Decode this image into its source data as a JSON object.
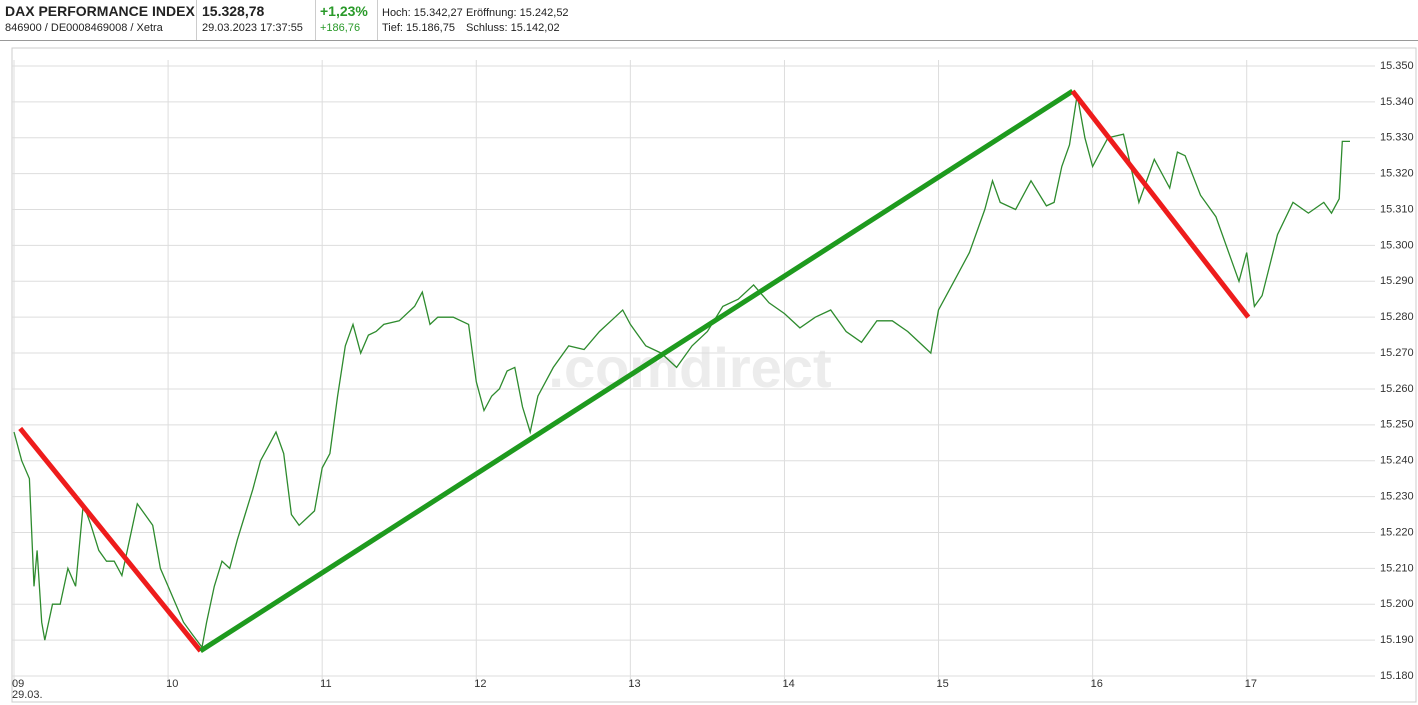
{
  "header": {
    "name": "DAX PERFORMANCE INDEX",
    "ids": "846900 / DE0008469008 / Xetra",
    "price": "15.328,78",
    "timestamp": "29.03.2023 17:37:55",
    "change_pct": "+1,23%",
    "change_abs": "+186,76",
    "high": "Hoch: 15.342,27",
    "open": "Eröffnung: 15.242,52",
    "low": "Tief: 15.186,75",
    "close": "Schluss: 15.142,02"
  },
  "chart_data": {
    "type": "line",
    "watermark": ".comdirect",
    "date_label": "29.03.",
    "xlim": [
      9,
      17.8
    ],
    "ylim": [
      15180,
      15350
    ],
    "grid": true,
    "xticks": [
      {
        "value": 9,
        "label": "09"
      },
      10,
      11,
      12,
      13,
      14,
      15,
      16,
      17
    ],
    "yticks": [
      {
        "value": 15180,
        "label": "15.180"
      },
      {
        "value": 15190,
        "label": "15.190"
      },
      {
        "value": 15200,
        "label": "15.200"
      },
      {
        "value": 15210,
        "label": "15.210"
      },
      {
        "value": 15220,
        "label": "15.220"
      },
      {
        "value": 15230,
        "label": "15.230"
      },
      {
        "value": 15240,
        "label": "15.240"
      },
      {
        "value": 15250,
        "label": "15.250"
      },
      {
        "value": 15260,
        "label": "15.260"
      },
      {
        "value": 15270,
        "label": "15.270"
      },
      {
        "value": 15280,
        "label": "15.280"
      },
      {
        "value": 15290,
        "label": "15.290"
      },
      {
        "value": 15300,
        "label": "15.300"
      },
      {
        "value": 15310,
        "label": "15.310"
      },
      {
        "value": 15320,
        "label": "15.320"
      },
      {
        "value": 15330,
        "label": "15.330"
      },
      {
        "value": 15340,
        "label": "15.340"
      },
      {
        "value": 15350,
        "label": "15.350"
      }
    ],
    "series": [
      {
        "color": "#2e8b2e",
        "x": [
          9.0,
          9.05,
          9.1,
          9.13,
          9.15,
          9.18,
          9.2,
          9.25,
          9.3,
          9.35,
          9.4,
          9.45,
          9.5,
          9.55,
          9.6,
          9.65,
          9.7,
          9.75,
          9.8,
          9.85,
          9.9,
          9.95,
          10.0,
          10.05,
          10.1,
          10.15,
          10.22,
          10.25,
          10.3,
          10.35,
          10.4,
          10.45,
          10.5,
          10.55,
          10.6,
          10.65,
          10.7,
          10.75,
          10.8,
          10.85,
          10.9,
          10.95,
          11.0,
          11.05,
          11.1,
          11.15,
          11.2,
          11.25,
          11.3,
          11.35,
          11.4,
          11.5,
          11.6,
          11.65,
          11.7,
          11.75,
          11.85,
          11.95,
          12.0,
          12.05,
          12.1,
          12.15,
          12.2,
          12.25,
          12.3,
          12.35,
          12.4,
          12.5,
          12.6,
          12.7,
          12.8,
          12.9,
          12.95,
          13.0,
          13.1,
          13.2,
          13.3,
          13.4,
          13.5,
          13.6,
          13.7,
          13.8,
          13.9,
          14.0,
          14.1,
          14.2,
          14.3,
          14.4,
          14.5,
          14.6,
          14.7,
          14.8,
          14.9,
          14.95,
          15.0,
          15.1,
          15.2,
          15.3,
          15.35,
          15.4,
          15.5,
          15.6,
          15.7,
          15.75,
          15.8,
          15.85,
          15.9,
          15.95,
          16.0,
          16.05,
          16.1,
          16.2,
          16.3,
          16.4,
          16.5,
          16.55,
          16.6,
          16.7,
          16.8,
          16.9,
          16.95,
          17.0,
          17.05,
          17.1,
          17.2,
          17.3,
          17.4,
          17.5,
          17.55,
          17.6,
          17.62,
          17.67
        ],
        "values": [
          15248,
          15240,
          15235,
          15205,
          15215,
          15195,
          15190,
          15200,
          15200,
          15210,
          15205,
          15228,
          15222,
          15215,
          15212,
          15212,
          15208,
          15218,
          15228,
          15225,
          15222,
          15210,
          15205,
          15200,
          15195,
          15192,
          15188,
          15195,
          15205,
          15212,
          15210,
          15218,
          15225,
          15232,
          15240,
          15244,
          15248,
          15242,
          15225,
          15222,
          15224,
          15226,
          15238,
          15242,
          15258,
          15272,
          15278,
          15270,
          15275,
          15276,
          15278,
          15279,
          15283,
          15287,
          15278,
          15280,
          15280,
          15278,
          15262,
          15254,
          15258,
          15260,
          15265,
          15266,
          15255,
          15248,
          15258,
          15266,
          15272,
          15271,
          15276,
          15280,
          15282,
          15278,
          15272,
          15270,
          15266,
          15272,
          15276,
          15283,
          15285,
          15289,
          15284,
          15281,
          15277,
          15280,
          15282,
          15276,
          15273,
          15279,
          15279,
          15276,
          15272,
          15270,
          15282,
          15290,
          15298,
          15310,
          15318,
          15312,
          15310,
          15318,
          15311,
          15312,
          15322,
          15328,
          15342,
          15330,
          15322,
          15326,
          15330,
          15331,
          15312,
          15324,
          15316,
          15326,
          15325,
          15314,
          15308,
          15296,
          15290,
          15298,
          15283,
          15286,
          15303,
          15312,
          15309,
          15312,
          15309,
          15313,
          15329,
          15329
        ]
      }
    ],
    "trendlines": [
      {
        "color": "#ee1c1c",
        "x": [
          9.04,
          10.21
        ],
        "values": [
          15249,
          15187
        ]
      },
      {
        "color": "#1e9a1e",
        "x": [
          10.21,
          15.87
        ],
        "values": [
          15187,
          15343
        ]
      },
      {
        "color": "#ee1c1c",
        "x": [
          15.87,
          17.01
        ],
        "values": [
          15343,
          15280
        ]
      }
    ]
  }
}
